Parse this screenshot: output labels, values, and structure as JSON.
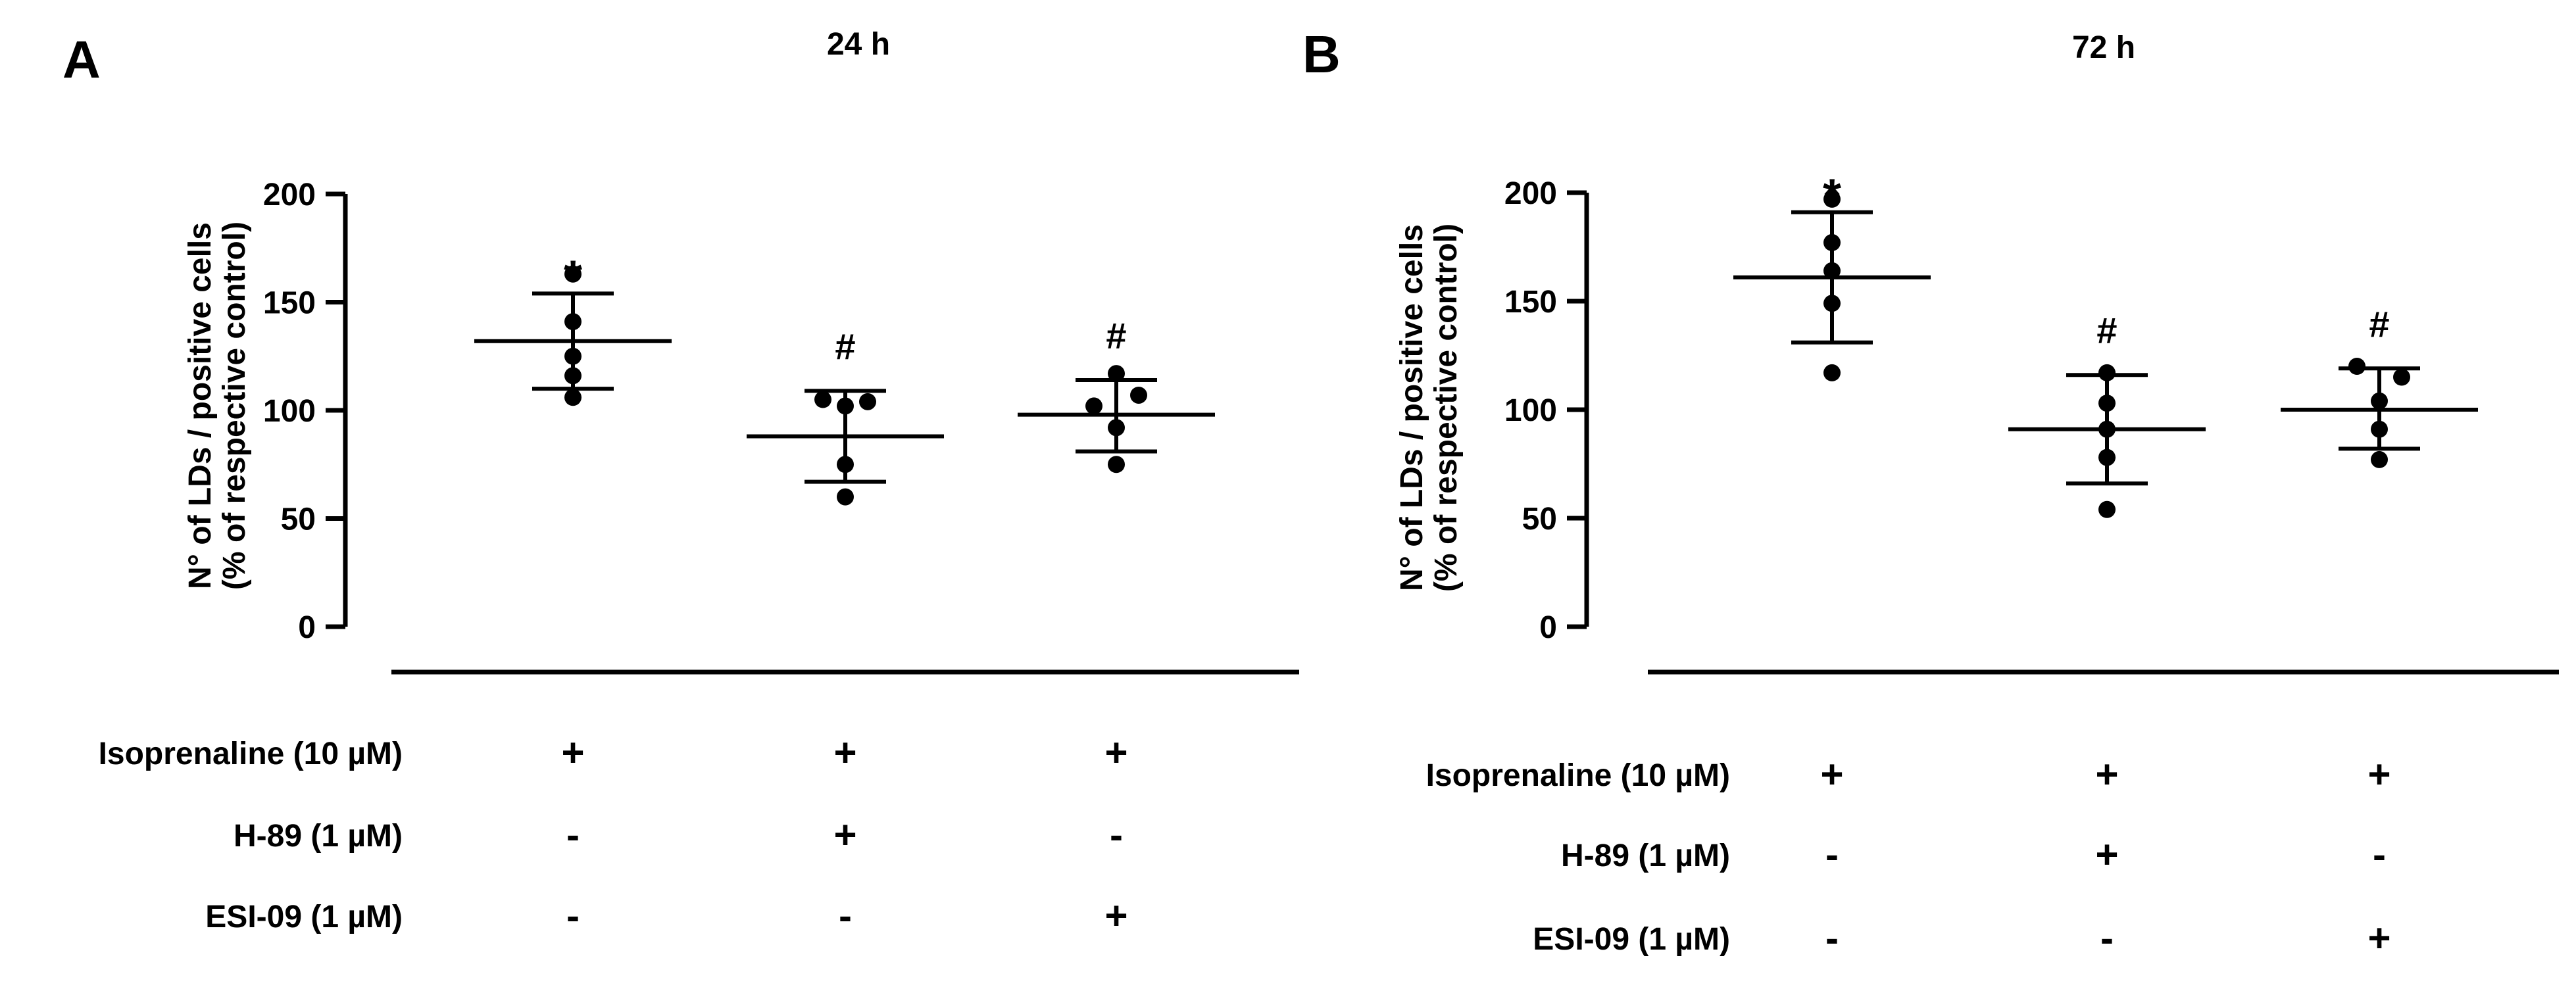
{
  "chart_data": [
    {
      "panel": "A",
      "type": "scatter",
      "title": "24 h",
      "ylabel_lines": [
        "N° of LDs / positive cells",
        "(% of respective control)"
      ],
      "ylim": [
        0,
        200
      ],
      "yticks": [
        0,
        50,
        100,
        150,
        200
      ],
      "groups": [
        {
          "points": [
            163,
            141,
            125,
            116,
            106
          ],
          "mean": 132,
          "sd_upper": 154,
          "sd_lower": 110,
          "annotation": "*"
        },
        {
          "points": [
            105,
            104,
            102,
            75,
            60
          ],
          "mean": 88,
          "sd_upper": 109,
          "sd_lower": 67,
          "annotation": "#"
        },
        {
          "points": [
            117,
            107,
            102,
            92,
            75
          ],
          "mean": 98,
          "sd_upper": 114,
          "sd_lower": 81,
          "annotation": "#"
        }
      ],
      "treatments": [
        {
          "label": "Isoprenaline (10 µM)",
          "signs": [
            "+",
            "+",
            "+"
          ]
        },
        {
          "label": "H-89 (1 µM)",
          "signs": [
            "-",
            "+",
            "-"
          ]
        },
        {
          "label": "ESI-09 (1 µM)",
          "signs": [
            "-",
            "-",
            "+"
          ]
        }
      ],
      "grid": false,
      "legend": "none"
    },
    {
      "panel": "B",
      "type": "scatter",
      "title": "72 h",
      "ylabel_lines": [
        "N° of LDs / positive cells",
        "(% of respective control)"
      ],
      "ylim": [
        0,
        200
      ],
      "yticks": [
        0,
        50,
        100,
        150,
        200
      ],
      "groups": [
        {
          "points": [
            197,
            177,
            164,
            149,
            117
          ],
          "mean": 161,
          "sd_upper": 191,
          "sd_lower": 131,
          "annotation": "*"
        },
        {
          "points": [
            117,
            103,
            91,
            78,
            54
          ],
          "mean": 91,
          "sd_upper": 116,
          "sd_lower": 66,
          "annotation": "#"
        },
        {
          "points": [
            120,
            115,
            104,
            91,
            77
          ],
          "mean": 100,
          "sd_upper": 119,
          "sd_lower": 82,
          "annotation": "#"
        }
      ],
      "treatments": [
        {
          "label": "Isoprenaline (10 µM)",
          "signs": [
            "+",
            "+",
            "+"
          ]
        },
        {
          "label": "H-89 (1 µM)",
          "signs": [
            "-",
            "+",
            "-"
          ]
        },
        {
          "label": "ESI-09 (1 µM)",
          "signs": [
            "-",
            "-",
            "+"
          ]
        }
      ],
      "grid": false,
      "legend": "none"
    }
  ]
}
